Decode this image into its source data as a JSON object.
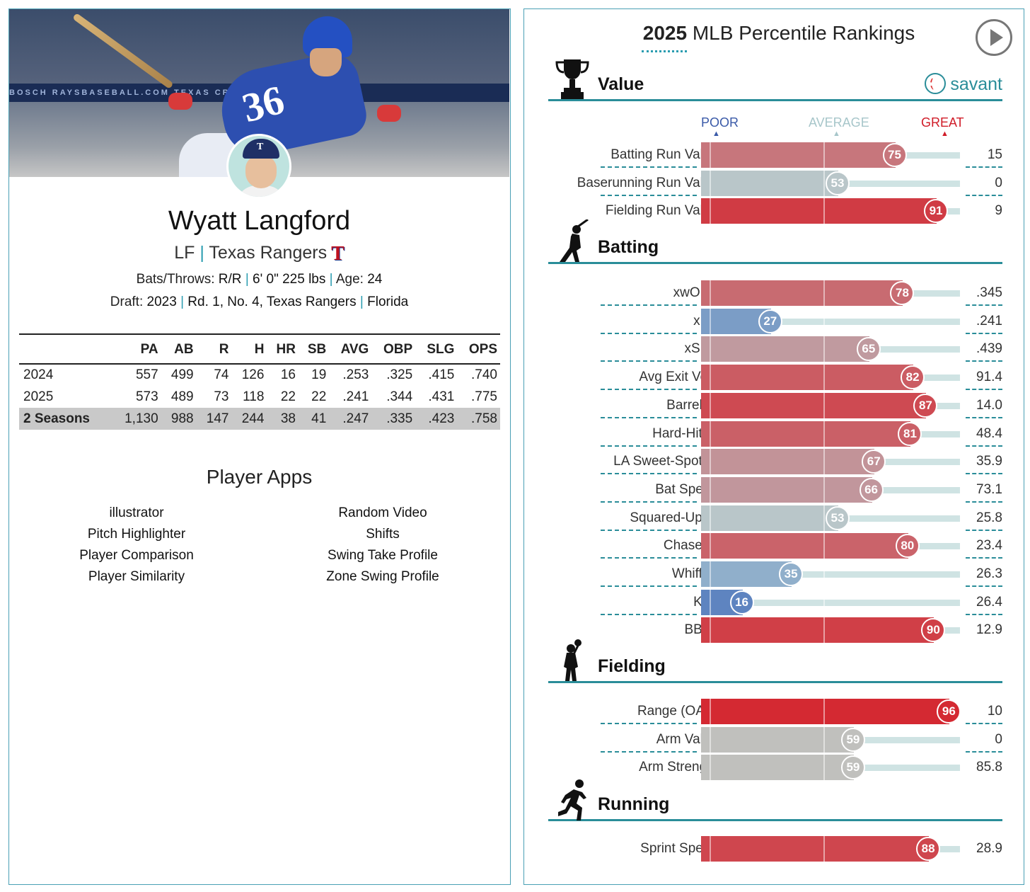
{
  "player": {
    "name": "Wyatt Langford",
    "position": "LF",
    "team": "Texas Rangers",
    "team_logo_letter": "T",
    "bats_throws_label": "Bats/Throws:",
    "bats_throws": "R/R",
    "height_weight": "6' 0\" 225 lbs",
    "age_label": "Age:",
    "age": "24",
    "draft_label": "Draft:",
    "draft_year": "2023",
    "draft_pick": "Rd. 1, No. 4,",
    "draft_team": "Texas Rangers",
    "school": "Florida",
    "photo_banner": "BOSCH       RAYSBASEBALL.COM       TEXAS       CRABALLEN       BOSCH       RAYS"
  },
  "stats_table": {
    "headers": [
      "",
      "PA",
      "AB",
      "R",
      "H",
      "HR",
      "SB",
      "AVG",
      "OBP",
      "SLG",
      "OPS"
    ],
    "rows": [
      [
        "2024",
        "557",
        "499",
        "74",
        "126",
        "16",
        "19",
        ".253",
        ".325",
        ".415",
        ".740"
      ],
      [
        "2025",
        "573",
        "489",
        "73",
        "118",
        "22",
        "22",
        ".241",
        ".344",
        ".431",
        ".775"
      ],
      [
        "2 Seasons",
        "1,130",
        "988",
        "147",
        "244",
        "38",
        "41",
        ".247",
        ".335",
        ".423",
        ".758"
      ]
    ]
  },
  "apps": {
    "title": "Player Apps",
    "left": [
      "illustrator",
      "Pitch Highlighter",
      "Player Comparison",
      "Player Similarity"
    ],
    "right": [
      "Random Video",
      "Shifts",
      "Swing Take Profile",
      "Zone Swing Profile"
    ]
  },
  "rankings": {
    "title_year": "2025",
    "title_rest": "MLB Percentile Rankings",
    "savant_label": "savant",
    "scale": {
      "poor": "POOR",
      "average": "AVERAGE",
      "great": "GREAT"
    },
    "sections": [
      {
        "name": "Value",
        "icon": "trophy-icon",
        "metrics": [
          {
            "label": "Batting Run Value",
            "pct": 75,
            "value": "15"
          },
          {
            "label": "Baserunning Run Value",
            "pct": 53,
            "value": "0"
          },
          {
            "label": "Fielding Run Value",
            "pct": 91,
            "value": "9"
          }
        ]
      },
      {
        "name": "Batting",
        "icon": "batter-icon",
        "metrics": [
          {
            "label": "xwOBA",
            "pct": 78,
            "value": ".345"
          },
          {
            "label": "xBA",
            "pct": 27,
            "value": ".241"
          },
          {
            "label": "xSLG",
            "pct": 65,
            "value": ".439"
          },
          {
            "label": "Avg Exit Velo",
            "pct": 82,
            "value": "91.4"
          },
          {
            "label": "Barrel %",
            "pct": 87,
            "value": "14.0"
          },
          {
            "label": "Hard-Hit %",
            "pct": 81,
            "value": "48.4"
          },
          {
            "label": "LA Sweet-Spot %",
            "pct": 67,
            "value": "35.9"
          },
          {
            "label": "Bat Speed",
            "pct": 66,
            "value": "73.1"
          },
          {
            "label": "Squared-Up %",
            "pct": 53,
            "value": "25.8"
          },
          {
            "label": "Chase %",
            "pct": 80,
            "value": "23.4"
          },
          {
            "label": "Whiff %",
            "pct": 35,
            "value": "26.3"
          },
          {
            "label": "K %",
            "pct": 16,
            "value": "26.4"
          },
          {
            "label": "BB %",
            "pct": 90,
            "value": "12.9"
          }
        ]
      },
      {
        "name": "Fielding",
        "icon": "fielder-icon",
        "metrics": [
          {
            "label": "Range (OAA)",
            "pct": 96,
            "value": "10",
            "grey": false
          },
          {
            "label": "Arm Value",
            "pct": 59,
            "value": "0",
            "grey": true
          },
          {
            "label": "Arm Strength",
            "pct": 59,
            "value": "85.8",
            "grey": true
          }
        ]
      },
      {
        "name": "Running",
        "icon": "runner-icon",
        "metrics": [
          {
            "label": "Sprint Speed",
            "pct": 88,
            "value": "28.9"
          }
        ]
      }
    ]
  }
}
